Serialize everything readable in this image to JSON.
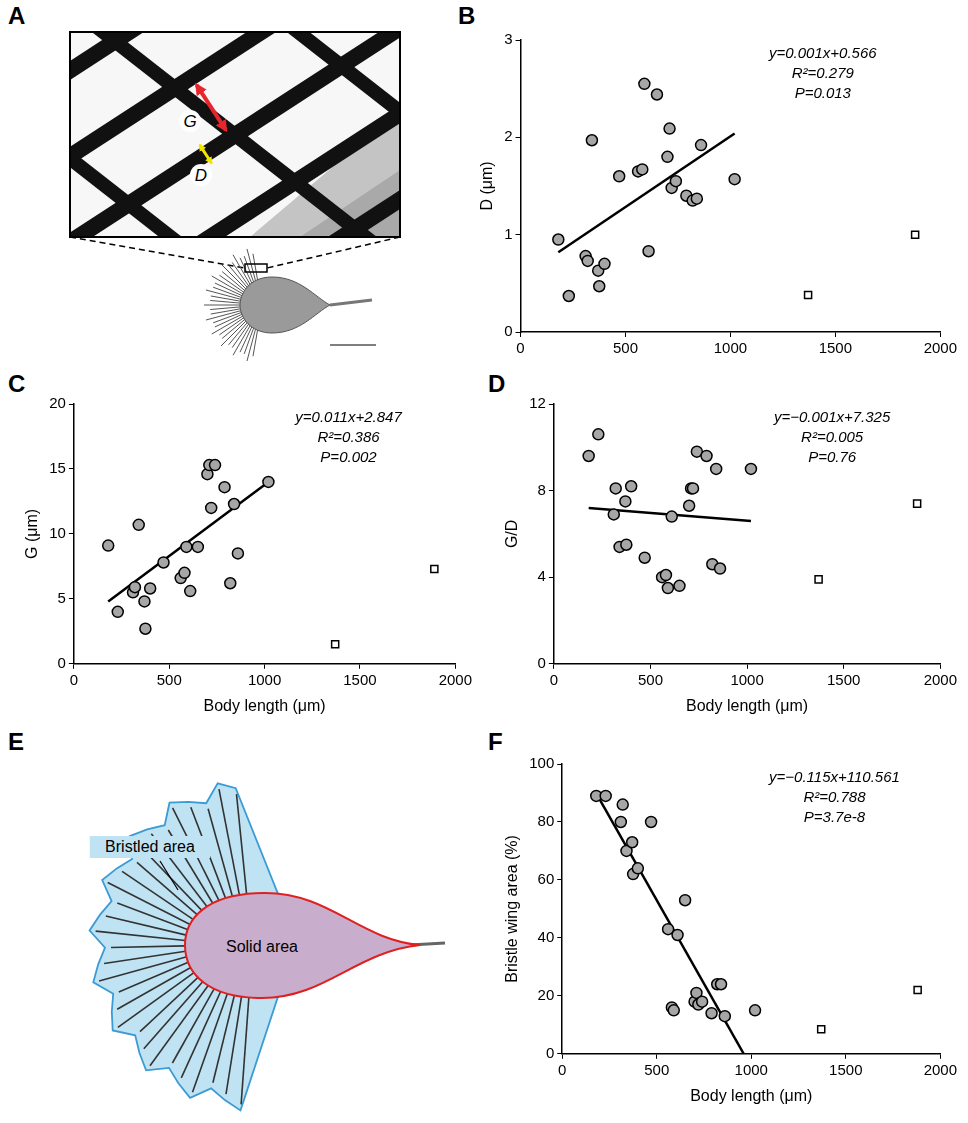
{
  "chart_data": [
    {
      "panel": "B",
      "type": "scatter",
      "ylabel": "D (μm)",
      "xlim": [
        0,
        2000
      ],
      "xticks": [
        0,
        500,
        1000,
        1500,
        2000
      ],
      "ylim": [
        0,
        3
      ],
      "yticks": [
        0,
        1,
        2,
        3
      ],
      "grid": false,
      "series": [
        {
          "marker": "circle",
          "color": "#a6a6a6",
          "x": [
            180,
            230,
            310,
            320,
            340,
            370,
            375,
            400,
            470,
            560,
            580,
            590,
            610,
            650,
            700,
            710,
            720,
            740,
            790,
            820,
            840,
            860,
            1020
          ],
          "values": [
            0.95,
            0.37,
            0.78,
            0.73,
            1.97,
            0.63,
            0.47,
            0.7,
            1.6,
            1.65,
            1.67,
            2.55,
            0.83,
            2.44,
            1.8,
            2.09,
            1.48,
            1.55,
            1.4,
            1.35,
            1.37,
            1.92,
            1.57
          ]
        },
        {
          "marker": "square",
          "color": "#ffffff",
          "x": [
            1370,
            1880
          ],
          "values": [
            0.38,
            1.0
          ]
        },
        {
          "type": "line",
          "color": "#000000",
          "x": [
            180,
            1020
          ],
          "values": [
            0.82,
            2.04
          ]
        }
      ],
      "annotations": [
        "y=0.001x+0.566",
        "R²=0.279",
        "P=0.013"
      ]
    },
    {
      "panel": "C",
      "type": "scatter",
      "xlabel": "Body length (μm)",
      "ylabel": "G (μm)",
      "xlim": [
        0,
        2000
      ],
      "xticks": [
        0,
        500,
        1000,
        1500,
        2000
      ],
      "ylim": [
        0,
        20
      ],
      "yticks": [
        0,
        5,
        10,
        15,
        20
      ],
      "grid": false,
      "series": [
        {
          "marker": "circle",
          "color": "#a6a6a6",
          "x": [
            180,
            230,
            310,
            320,
            340,
            370,
            375,
            400,
            470,
            560,
            580,
            590,
            610,
            650,
            700,
            710,
            720,
            740,
            790,
            820,
            840,
            860,
            1020
          ],
          "values": [
            9.1,
            4.0,
            5.5,
            5.9,
            10.7,
            4.8,
            2.7,
            5.8,
            7.8,
            6.6,
            7.0,
            9.0,
            5.6,
            9.0,
            14.6,
            15.3,
            12.0,
            15.3,
            13.6,
            6.2,
            12.3,
            8.5,
            14.0
          ]
        },
        {
          "marker": "square",
          "color": "#ffffff",
          "x": [
            1370,
            1890
          ],
          "values": [
            1.5,
            7.3
          ]
        },
        {
          "type": "line",
          "color": "#000000",
          "x": [
            180,
            1020
          ],
          "values": [
            4.8,
            14.0
          ]
        }
      ],
      "annotations": [
        "y=0.011x+2.847",
        "R²=0.386",
        "P=0.002"
      ]
    },
    {
      "panel": "D",
      "type": "scatter",
      "xlabel": "Body length (μm)",
      "ylabel": "G/D",
      "xlim": [
        0,
        2000
      ],
      "xticks": [
        0,
        500,
        1000,
        1500,
        2000
      ],
      "ylim": [
        0,
        12
      ],
      "yticks": [
        0,
        4,
        8,
        12
      ],
      "grid": false,
      "series": [
        {
          "marker": "circle",
          "color": "#a6a6a6",
          "x": [
            180,
            230,
            310,
            320,
            340,
            370,
            375,
            400,
            470,
            560,
            580,
            590,
            610,
            650,
            700,
            710,
            720,
            740,
            790,
            820,
            840,
            860,
            1020
          ],
          "values": [
            9.6,
            10.6,
            6.9,
            8.1,
            5.4,
            7.5,
            5.5,
            8.2,
            4.9,
            4.0,
            4.1,
            3.5,
            6.8,
            3.6,
            7.3,
            8.1,
            8.1,
            9.8,
            9.6,
            4.6,
            9.0,
            4.4,
            9.0
          ]
        },
        {
          "marker": "square",
          "color": "#ffffff",
          "x": [
            1370,
            1880
          ],
          "values": [
            3.9,
            7.4
          ]
        },
        {
          "type": "line",
          "color": "#000000",
          "x": [
            180,
            1020
          ],
          "values": [
            7.2,
            6.6
          ]
        }
      ],
      "annotations": [
        "y=−0.001x+7.325",
        "R²=0.005",
        "P=0.76"
      ]
    },
    {
      "panel": "F",
      "type": "scatter",
      "xlabel": "Body length (μm)",
      "ylabel": "Bristle wing area (%)",
      "xlim": [
        0,
        2000
      ],
      "xticks": [
        0,
        500,
        1000,
        1500,
        2000
      ],
      "ylim": [
        0,
        100
      ],
      "yticks": [
        0,
        20,
        40,
        60,
        80,
        100
      ],
      "grid": false,
      "series": [
        {
          "marker": "circle",
          "color": "#a6a6a6",
          "x": [
            180,
            230,
            310,
            320,
            340,
            370,
            375,
            400,
            470,
            560,
            580,
            590,
            610,
            650,
            700,
            710,
            720,
            740,
            790,
            820,
            840,
            860,
            1020
          ],
          "values": [
            89,
            89,
            80,
            86,
            70,
            73,
            62,
            64,
            80,
            43,
            16,
            15,
            41,
            53,
            18,
            21,
            17,
            18,
            14,
            24,
            24,
            13,
            15
          ]
        },
        {
          "marker": "square",
          "color": "#ffffff",
          "x": [
            1370,
            1880
          ],
          "values": [
            8.5,
            22
          ]
        },
        {
          "type": "line",
          "color": "#000000",
          "x": [
            180,
            960
          ],
          "values": [
            89.9,
            0
          ]
        }
      ],
      "annotations": [
        "y=−0.115x+110.561",
        "R²=0.788",
        "P=3.7e-8"
      ]
    }
  ],
  "diagrams": [
    {
      "panel": "A",
      "labels": [
        "G",
        "D"
      ]
    },
    {
      "panel": "E",
      "labels": [
        "Bristled area",
        "Solid area"
      ]
    }
  ]
}
